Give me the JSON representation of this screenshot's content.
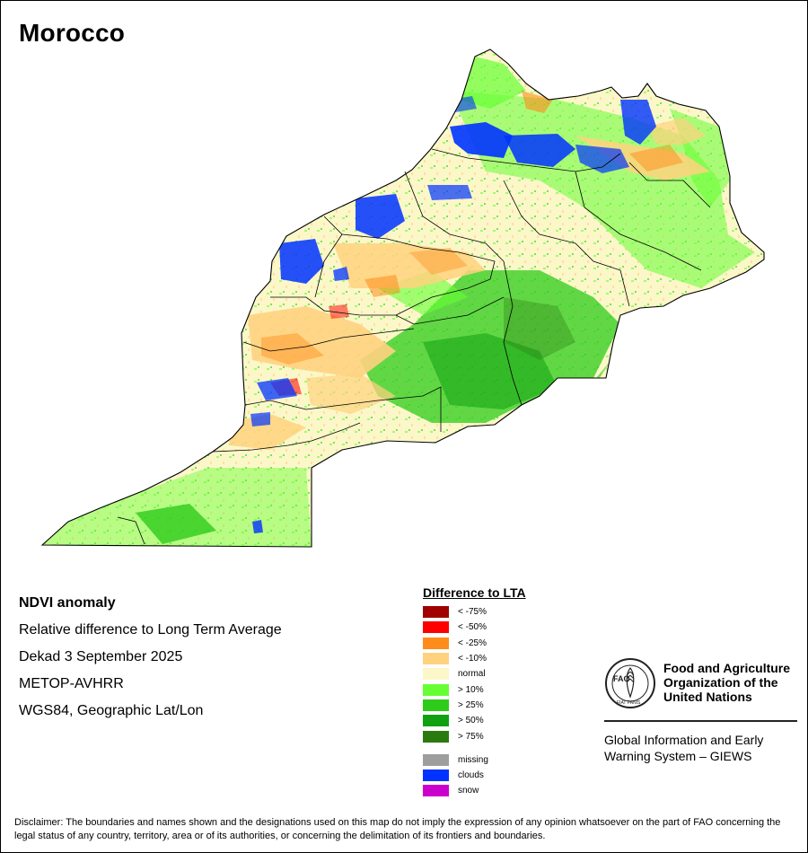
{
  "title": "Morocco",
  "info": {
    "heading": "NDVI anomaly",
    "lines": [
      "Relative difference to Long Term Average",
      "Dekad 3 September 2025",
      "METOP-AVHRR",
      "WGS84, Geographic Lat/Lon"
    ]
  },
  "legend": {
    "title": "Difference to LTA",
    "items": [
      {
        "label": "< -75%",
        "color": "#a00000"
      },
      {
        "label": "< -50%",
        "color": "#ff0000"
      },
      {
        "label": "< -25%",
        "color": "#ff8c1a"
      },
      {
        "label": "< -10%",
        "color": "#ffd27f"
      },
      {
        "label": "normal",
        "color": "#fbf7c9"
      },
      {
        "label": "> 10%",
        "color": "#66ff33"
      },
      {
        "label": "> 25%",
        "color": "#2ecc1a"
      },
      {
        "label": "> 50%",
        "color": "#10a010"
      },
      {
        "label": "> 75%",
        "color": "#2a7a10"
      }
    ],
    "extra_items": [
      {
        "label": "missing",
        "color": "#9e9e9e"
      },
      {
        "label": "clouds",
        "color": "#0033ff"
      },
      {
        "label": "snow",
        "color": "#cc00cc"
      }
    ]
  },
  "org": {
    "logo_text": "FAO",
    "logo_motto": "FIAT PANIS",
    "name": "Food and Agriculture Organization of the United Nations",
    "system": "Global Information and Early Warning System – GIEWS"
  },
  "disclaimer": "Disclaimer: The boundaries and names shown and the designations used on this map do not imply the expression of any opinion whatsoever on the part of FAO concerning the legal status of any country, territory, area or of its authorities, or concerning the delimitation of its frontiers and boundaries."
}
